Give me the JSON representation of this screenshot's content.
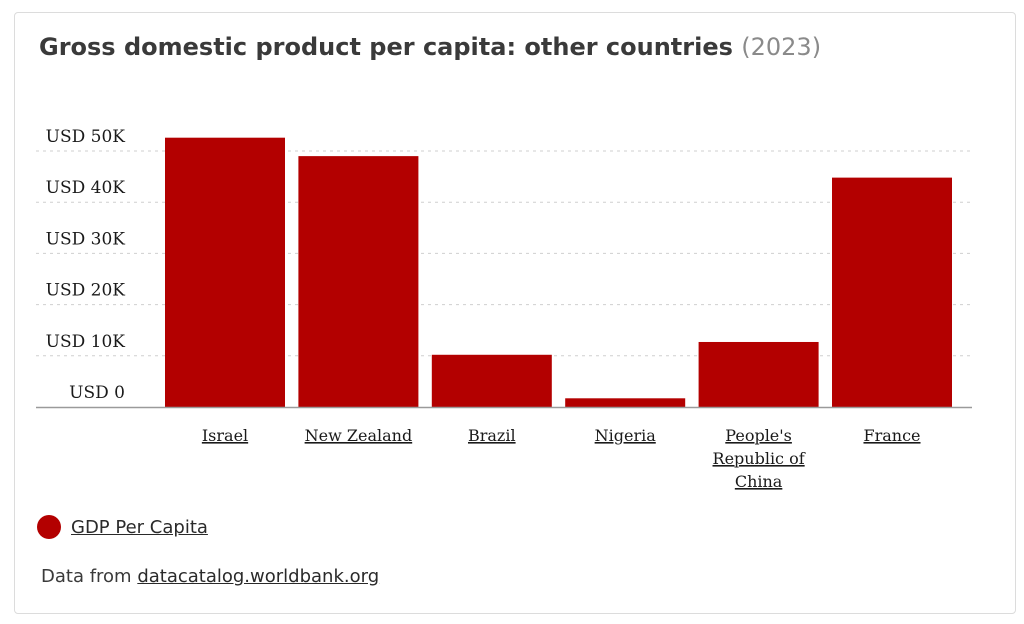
{
  "title": "Gross domestic product per capita: other countries",
  "title_year": "(2023)",
  "chart_data": {
    "type": "bar",
    "categories": [
      "Israel",
      "New Zealand",
      "Brazil",
      "Nigeria",
      "People's Republic of China",
      "France"
    ],
    "series": [
      {
        "name": "GDP Per Capita",
        "color": "#b30000",
        "values": [
          52600,
          49000,
          10200,
          1700,
          12700,
          44800
        ]
      }
    ],
    "y_ticks": [
      0,
      10000,
      20000,
      30000,
      40000,
      50000
    ],
    "y_tick_labels": [
      "USD 0",
      "USD 10K",
      "USD 20K",
      "USD 30K",
      "USD 40K",
      "USD 50K"
    ],
    "ylim": [
      0,
      50000
    ],
    "grid": true,
    "legend_position": "bottom-left"
  },
  "legend": {
    "label": "GDP Per Capita",
    "color": "#b30000"
  },
  "source": {
    "prefix": "Data from ",
    "link_text": "datacatalog.worldbank.org"
  }
}
